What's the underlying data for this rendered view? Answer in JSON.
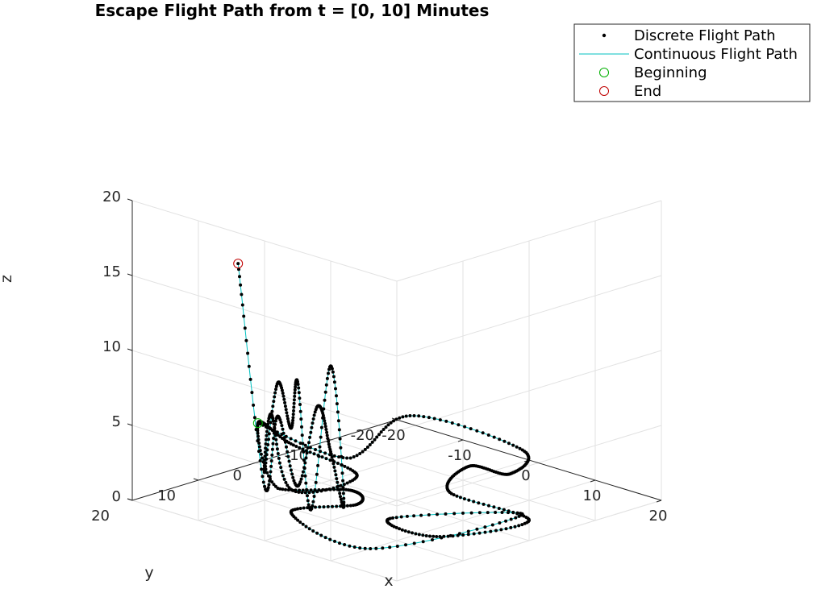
{
  "chart_data": {
    "type": "scatter",
    "projection": "3d",
    "title": "Escape Flight Path from t = [0, 10] Minutes",
    "xlabel": "x",
    "ylabel": "y",
    "zlabel": "z",
    "xlim": [
      -20,
      20
    ],
    "ylim": [
      -20,
      20
    ],
    "zlim": [
      0,
      20
    ],
    "x_ticks": [
      "-20",
      "-10",
      "0",
      "10",
      "20"
    ],
    "y_ticks": [
      "-20",
      "-10",
      "0",
      "10",
      "20"
    ],
    "z_ticks": [
      "0",
      "5",
      "10",
      "15",
      "20"
    ],
    "grid": true,
    "legend_position": "outside top-right",
    "colors": {
      "discrete": "#000000",
      "continuous": "#00c0c0",
      "beginning": "#00b000",
      "end": "#c00000"
    },
    "series": [
      {
        "name": "Discrete Flight Path",
        "marker": "dot"
      },
      {
        "name": "Continuous Flight Path",
        "marker": "line"
      },
      {
        "name": "Beginning",
        "marker": "circle"
      },
      {
        "name": "End",
        "marker": "circle"
      }
    ],
    "path_key_points": [
      {
        "label": "Beginning",
        "x": -20,
        "y": 1,
        "z": 2.6
      },
      {
        "x": -14,
        "y": -7,
        "z": 0
      },
      {
        "x": -20,
        "y": -22,
        "z": 0
      },
      {
        "x": -3,
        "y": -22,
        "z": 0
      },
      {
        "x": 2,
        "y": -15,
        "z": 0
      },
      {
        "x": -3,
        "y": -14,
        "z": 0
      },
      {
        "x": 2,
        "y": -6,
        "z": 0
      },
      {
        "x": 15,
        "y": -5,
        "z": 0
      },
      {
        "x": 12,
        "y": 6,
        "z": 0
      },
      {
        "x": 4,
        "y": 5,
        "z": 0
      },
      {
        "x": 13,
        "y": -6,
        "z": 0
      },
      {
        "x": 10,
        "y": 14,
        "z": 0
      },
      {
        "x": -5,
        "y": 11,
        "z": 0
      },
      {
        "x": -2,
        "y": 4,
        "z": 0
      },
      {
        "x": -6,
        "y": 1,
        "z": 0
      },
      {
        "x": -12,
        "y": 6,
        "z": 0
      },
      {
        "x": -20,
        "y": 1,
        "z": 2.6
      },
      {
        "x": -9,
        "y": 7,
        "z": 3.5
      },
      {
        "x": 2,
        "y": 8,
        "z": 3
      },
      {
        "x": -7,
        "y": 9,
        "z": 1
      },
      {
        "x": -6,
        "y": 13,
        "z": 6.7
      },
      {
        "x": -4,
        "y": 16,
        "z": 3.5
      },
      {
        "x": -1,
        "y": 17,
        "z": 10
      },
      {
        "x": 2,
        "y": 18,
        "z": 7.5
      },
      {
        "x": 4,
        "y": 19,
        "z": 11
      },
      {
        "x": 7,
        "y": 20,
        "z": 3
      },
      {
        "x": 10,
        "y": 20,
        "z": 13
      },
      {
        "x": 12,
        "y": 20,
        "z": 4
      },
      {
        "x": 9,
        "y": 19,
        "z": 7
      },
      {
        "x": 6,
        "y": 18,
        "z": 9.5
      },
      {
        "x": 2,
        "y": 17,
        "z": 3.5
      },
      {
        "x": -2,
        "y": 16,
        "z": 7.5
      },
      {
        "x": -6,
        "y": 14,
        "z": 2
      },
      {
        "label": "End",
        "x": -12,
        "y": 12,
        "z": 15.8
      }
    ]
  }
}
